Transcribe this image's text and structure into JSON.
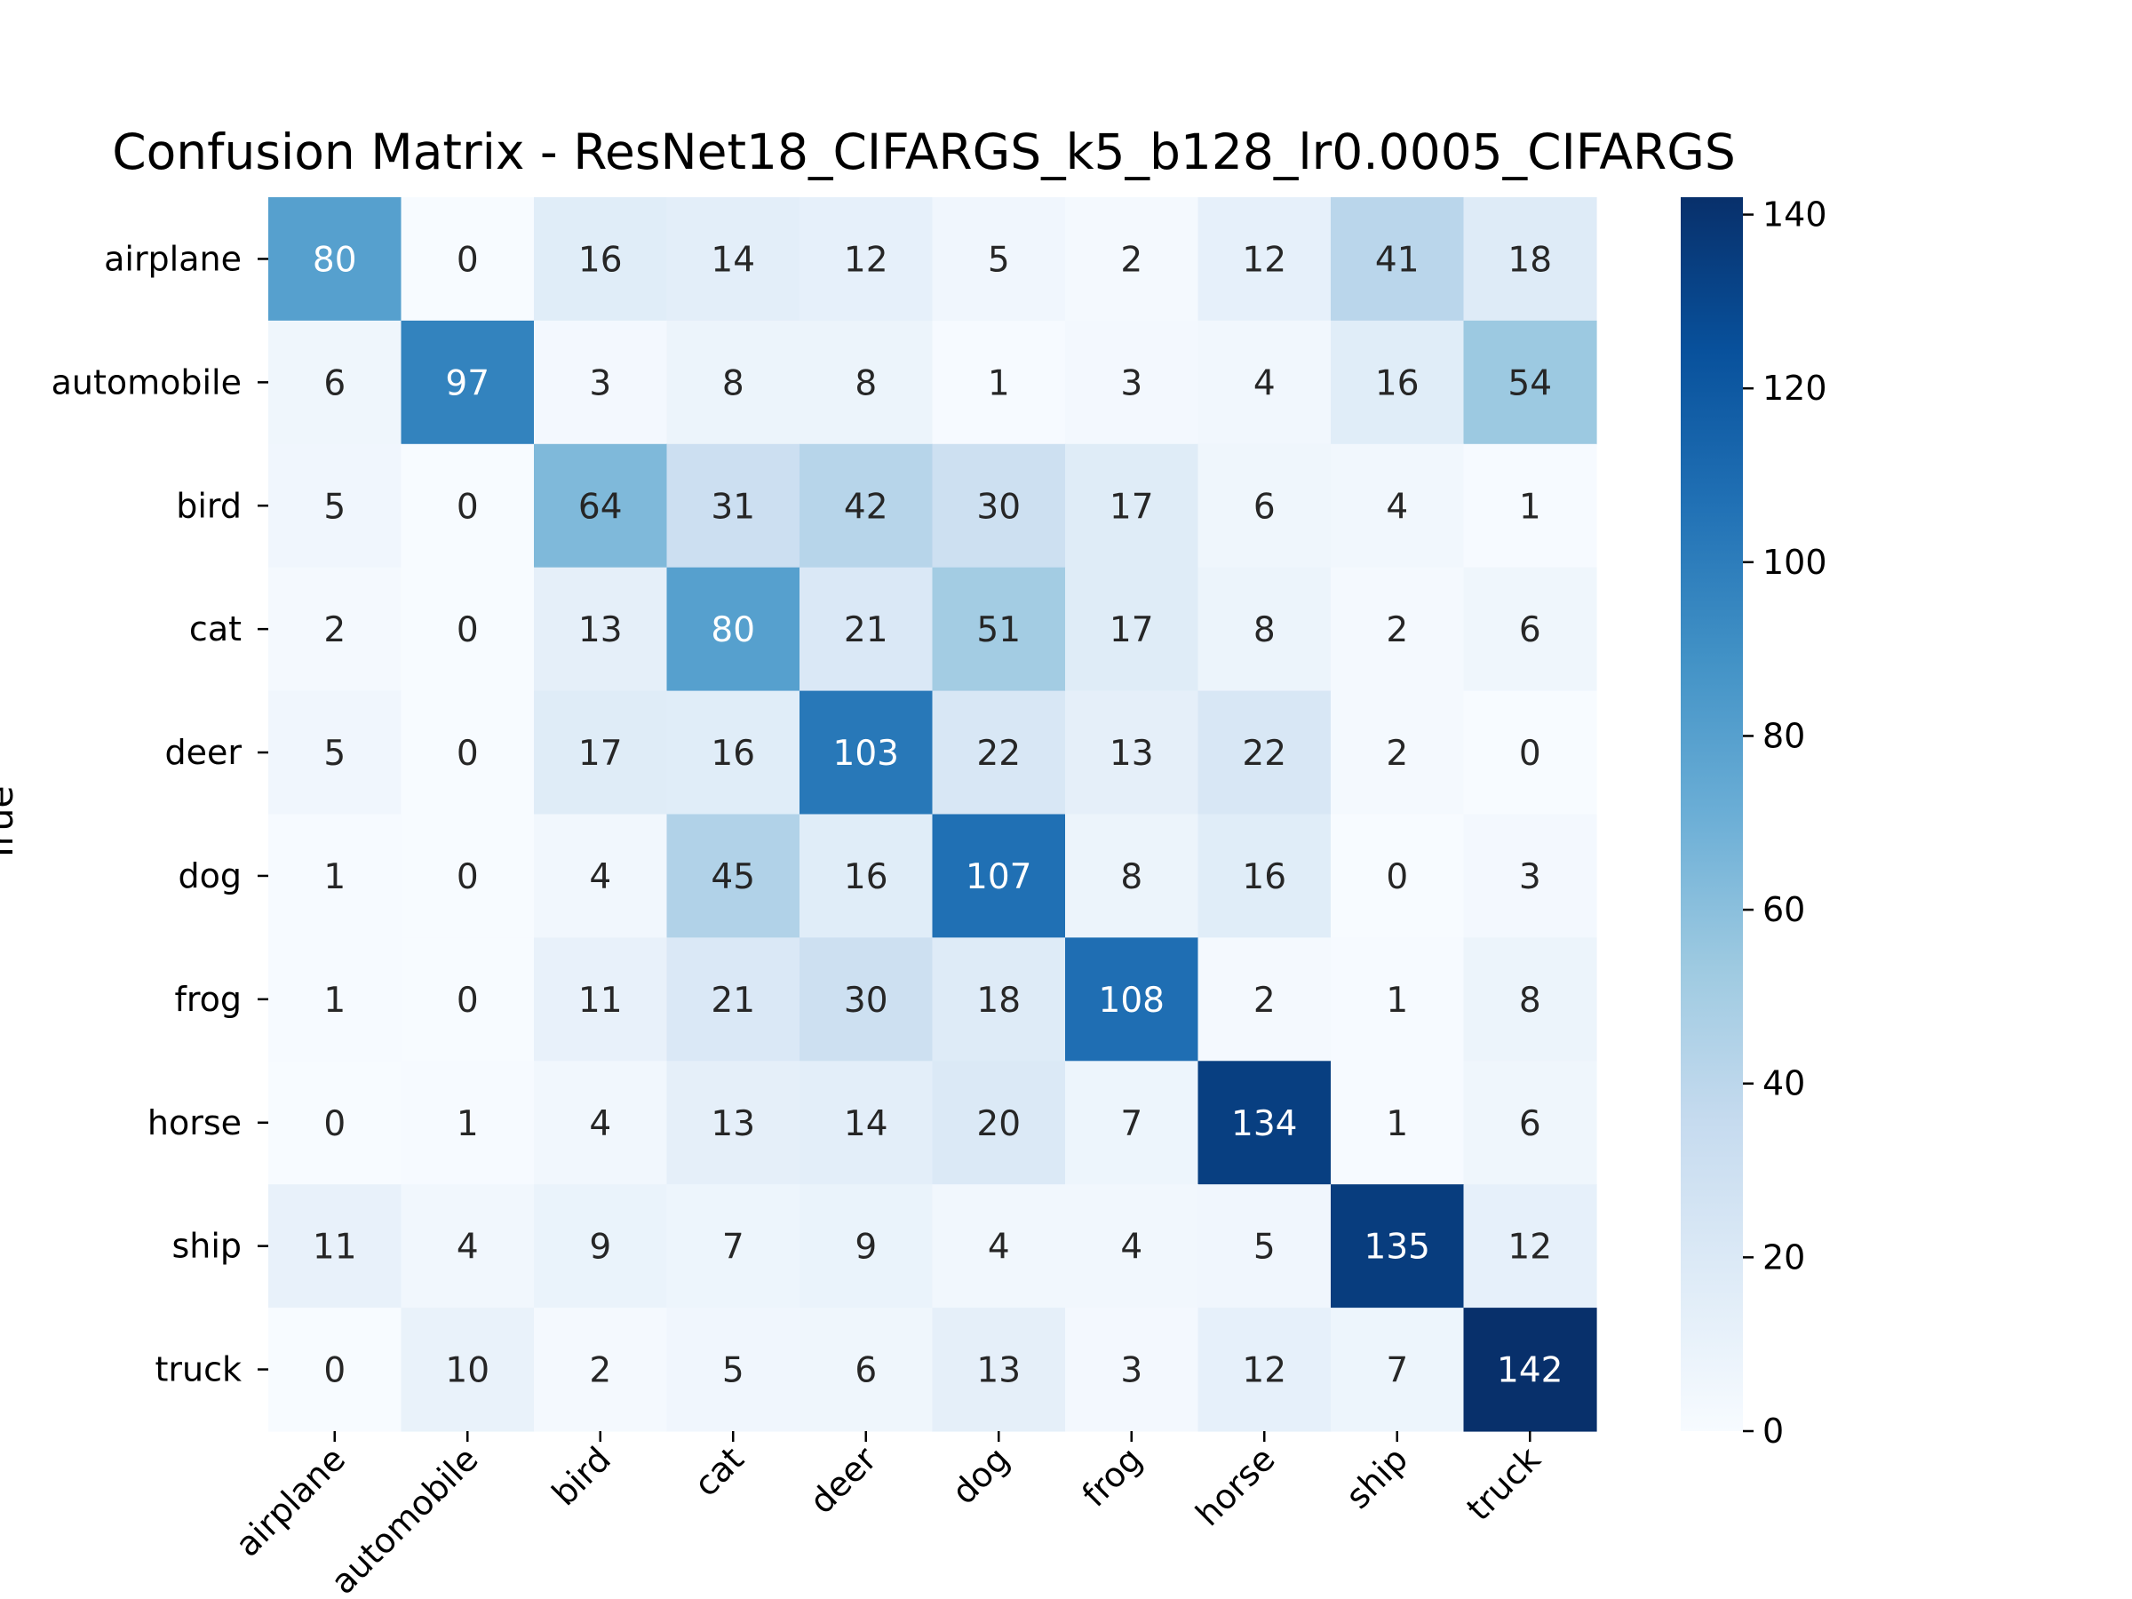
{
  "chart_data": {
    "type": "heatmap",
    "title": "Confusion Matrix - ResNet18_CIFARGS_k5_b128_lr0.0005_CIFARGS",
    "xlabel": "",
    "ylabel": "True",
    "row_labels": [
      "airplane",
      "automobile",
      "bird",
      "cat",
      "deer",
      "dog",
      "frog",
      "horse",
      "ship",
      "truck"
    ],
    "col_labels": [
      "airplane",
      "automobile",
      "bird",
      "cat",
      "deer",
      "dog",
      "frog",
      "horse",
      "ship",
      "truck"
    ],
    "values": [
      [
        80,
        0,
        16,
        14,
        12,
        5,
        2,
        12,
        41,
        18
      ],
      [
        6,
        97,
        3,
        8,
        8,
        1,
        3,
        4,
        16,
        54
      ],
      [
        5,
        0,
        64,
        31,
        42,
        30,
        17,
        6,
        4,
        1
      ],
      [
        2,
        0,
        13,
        80,
        21,
        51,
        17,
        8,
        2,
        6
      ],
      [
        5,
        0,
        17,
        16,
        103,
        22,
        13,
        22,
        2,
        0
      ],
      [
        1,
        0,
        4,
        45,
        16,
        107,
        8,
        16,
        0,
        3
      ],
      [
        1,
        0,
        11,
        21,
        30,
        18,
        108,
        2,
        1,
        8
      ],
      [
        0,
        1,
        4,
        13,
        14,
        20,
        7,
        134,
        1,
        6
      ],
      [
        11,
        4,
        9,
        7,
        9,
        4,
        4,
        5,
        135,
        12
      ],
      [
        0,
        10,
        2,
        5,
        6,
        13,
        3,
        12,
        7,
        142
      ]
    ],
    "colorbar": {
      "range": [
        0,
        142
      ],
      "ticks": [
        "0",
        "20",
        "40",
        "60",
        "80",
        "100",
        "120",
        "140"
      ]
    },
    "colormap": "Blues",
    "grid": false,
    "legend": "none"
  }
}
